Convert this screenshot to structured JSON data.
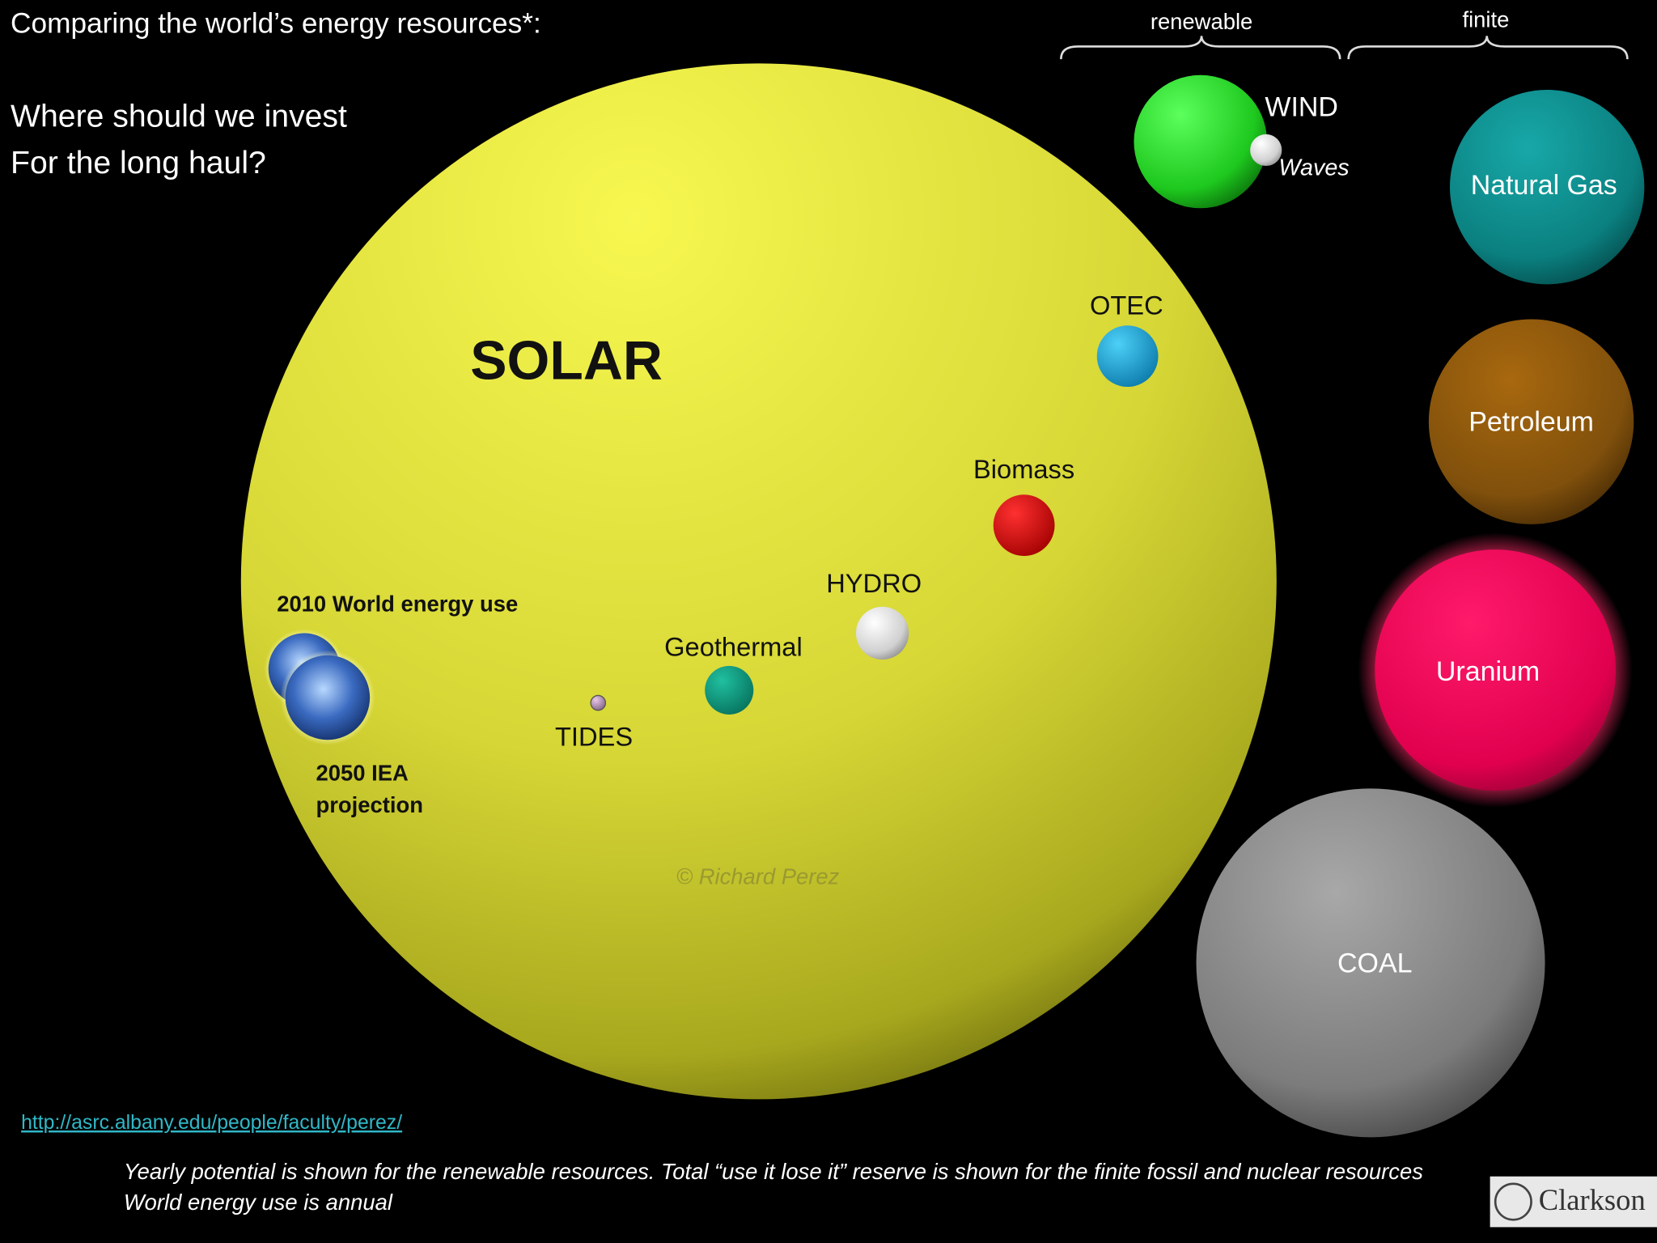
{
  "header": {
    "title": "Comparing the world’s energy resources*:",
    "question": [
      "Where should we invest",
      "For the long haul?"
    ]
  },
  "groups": {
    "renewable": "renewable",
    "finite": "finite"
  },
  "bubbles": {
    "solar": "SOLAR",
    "wind": "WIND",
    "waves": "Waves",
    "otec": "OTEC",
    "biomass": "Biomass",
    "hydro": "HYDRO",
    "geothermal": "Geothermal",
    "tides": "TIDES",
    "natural_gas": "Natural Gas",
    "petroleum": "Petroleum",
    "uranium": "Uranium",
    "coal": "COAL"
  },
  "earth": {
    "current": "2010 World energy use",
    "projection": [
      "2050 IEA",
      "projection"
    ]
  },
  "credit": "© Richard  Perez",
  "footer": {
    "url": "http://asrc.albany.edu/people/faculty/perez/",
    "notes": [
      "Yearly potential is shown for the renewable resources. Total “use it lose it” reserve is shown for the finite fossil and nuclear resources",
      "World energy use is annual"
    ],
    "logo": "Clarkson"
  }
}
